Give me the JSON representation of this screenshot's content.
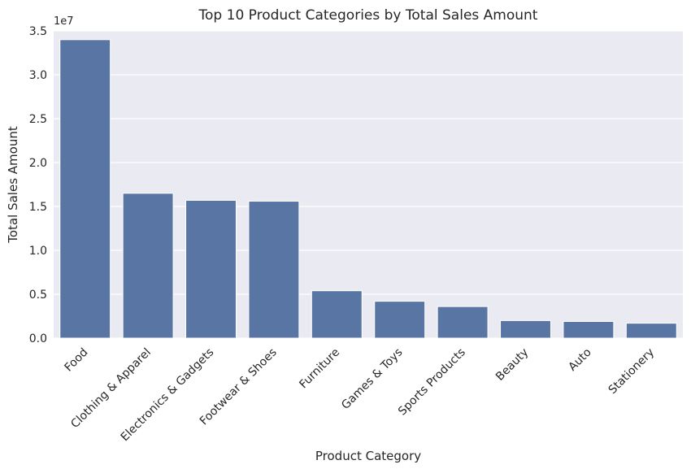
{
  "chart_data": {
    "type": "bar",
    "title": "Top 10 Product Categories by Total Sales Amount",
    "xlabel": "Product Category",
    "ylabel": "Total Sales Amount",
    "y_offset_label": "1e7",
    "categories": [
      "Food",
      "Clothing & Apparel",
      "Electronics & Gadgets",
      "Footwear & Shoes",
      "Furniture",
      "Games & Toys",
      "Sports Products",
      "Beauty",
      "Auto",
      "Stationery"
    ],
    "values": [
      34000000,
      16500000,
      15700000,
      15600000,
      5400000,
      4200000,
      3600000,
      2000000,
      1900000,
      1700000
    ],
    "ylim": [
      0,
      35000000
    ],
    "y_ticks": [
      0,
      5000000,
      10000000,
      15000000,
      20000000,
      25000000,
      30000000,
      35000000
    ],
    "y_tick_labels": [
      "0.0",
      "0.5",
      "1.0",
      "1.5",
      "2.0",
      "2.5",
      "3.0",
      "3.5"
    ],
    "grid": true,
    "colors": {
      "bar": "#5975a4",
      "plot_background": "#eaeaf2",
      "grid": "#ffffff",
      "text": "#262626"
    }
  }
}
